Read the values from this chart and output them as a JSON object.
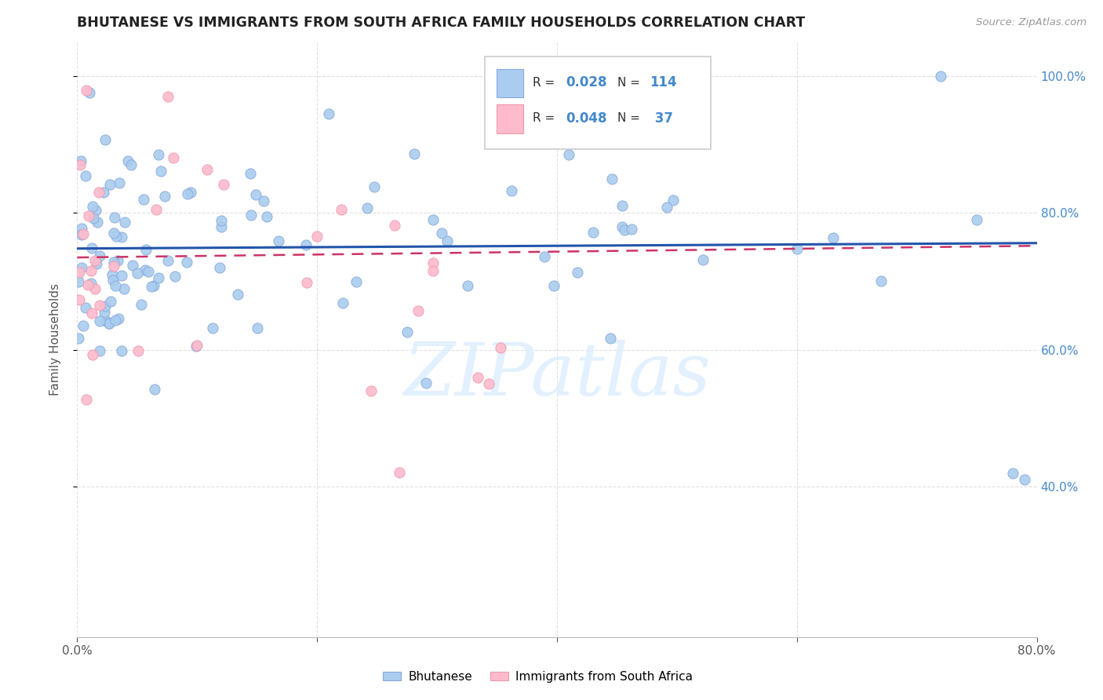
{
  "title": "BHUTANESE VS IMMIGRANTS FROM SOUTH AFRICA FAMILY HOUSEHOLDS CORRELATION CHART",
  "source": "Source: ZipAtlas.com",
  "ylabel": "Family Households",
  "legend_blue_R": "0.028",
  "legend_blue_N": "114",
  "legend_pink_R": "0.048",
  "legend_pink_N": " 37",
  "blue_color": "#aaccee",
  "blue_edge": "#88aadd",
  "pink_color": "#ffbbcc",
  "pink_edge": "#ee99aa",
  "blue_line_color": "#2255aa",
  "pink_line_color": "#cc3366",
  "watermark": "ZIPatlas",
  "watermark_color": "#ddeeff",
  "xlim": [
    0.0,
    0.8
  ],
  "ylim": [
    0.18,
    1.05
  ],
  "x_ticks": [
    0.0,
    0.2,
    0.4,
    0.6,
    0.8
  ],
  "x_tick_labels": [
    "0.0%",
    "",
    "",
    "",
    "80.0%"
  ],
  "y_ticks_right": [
    0.4,
    0.6,
    0.8,
    1.0
  ],
  "y_tick_labels_right": [
    "40.0%",
    "60.0%",
    "80.0%",
    "100.0%"
  ],
  "right_tick_color": "#4488cc",
  "grid_color": "#dddddd",
  "title_color": "#222222",
  "source_color": "#999999"
}
